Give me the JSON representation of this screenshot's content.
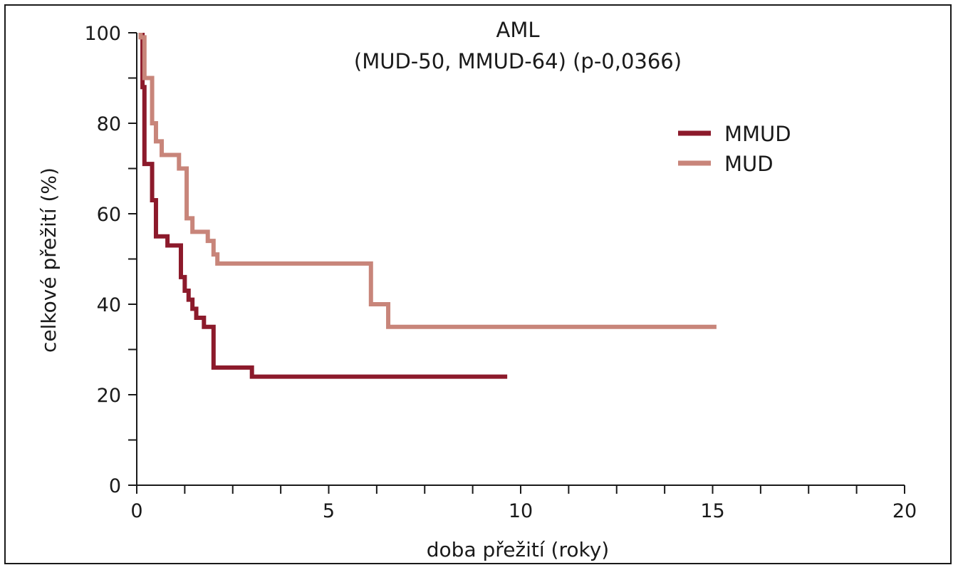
{
  "chart_data": {
    "type": "line",
    "title": "AML",
    "subtitle": "(MUD-50, MMUD-64) (p-0,0366)",
    "xlabel": "doba přežití (roky)",
    "ylabel": "celkové přežití (%)",
    "xlim": [
      0,
      20
    ],
    "ylim": [
      0,
      100
    ],
    "x_ticks": [
      0,
      5,
      10,
      15,
      20
    ],
    "y_ticks": [
      0,
      20,
      40,
      60,
      80,
      100
    ],
    "grid": false,
    "legend_position": "top-right",
    "step": true,
    "series": [
      {
        "name": "MMUD",
        "color": "#8c1a2b",
        "x": [
          0.15,
          0.2,
          0.4,
          0.5,
          0.6,
          0.8,
          1.05,
          1.15,
          1.25,
          1.35,
          1.45,
          1.55,
          1.65,
          1.75,
          1.85,
          2.0,
          2.1,
          3.0,
          9.65
        ],
        "y": [
          88,
          71,
          63,
          55,
          55,
          53,
          53,
          46,
          43,
          41,
          39,
          37,
          37,
          35,
          35,
          26,
          26,
          24,
          24
        ]
      },
      {
        "name": "MUD",
        "color": "#c8857a",
        "x": [
          0.1,
          0.2,
          0.4,
          0.5,
          0.65,
          0.9,
          1.1,
          1.3,
          1.45,
          1.6,
          1.85,
          2.0,
          2.1,
          6.1,
          6.55,
          15.1
        ],
        "y": [
          99,
          90,
          80,
          76,
          73,
          73,
          70,
          59,
          56,
          56,
          54,
          51,
          49,
          40,
          35,
          35
        ]
      }
    ]
  }
}
